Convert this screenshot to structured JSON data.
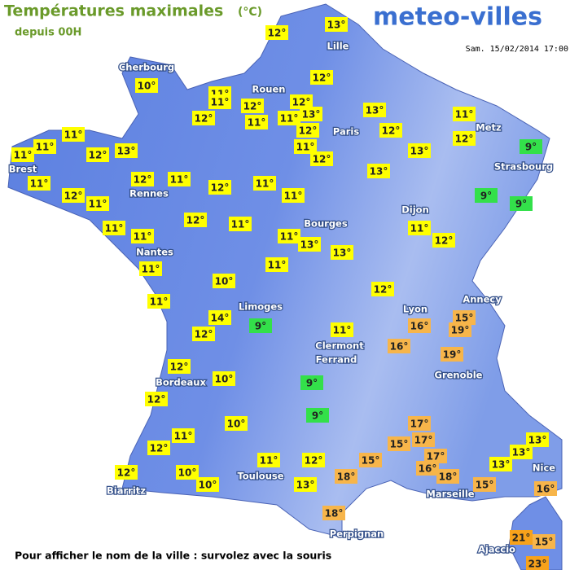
{
  "header": {
    "title": "Températures maximales",
    "unit": "(°C)",
    "subtitle": "depuis 00H",
    "brand": "meteo-villes",
    "date": "Sam. 15/02/2014 17:00"
  },
  "cities": [
    "Lille",
    "Cherbourg",
    "Rouen",
    "Paris",
    "Metz",
    "Strasbourg",
    "Brest",
    "Rennes",
    "Dijon",
    "Bourges",
    "Nantes",
    "Annecy",
    "Limoges",
    "Lyon",
    "Clermont",
    "Ferrand",
    "Grenoble",
    "Bordeaux",
    "Nice",
    "Toulouse",
    "Marseille",
    "Biarritz",
    "Perpignan",
    "Ajaccio"
  ],
  "temperatures": [
    {
      "value": 13,
      "label": "13°"
    },
    {
      "value": 12,
      "label": "12°"
    },
    {
      "value": 10,
      "label": "10°"
    },
    {
      "value": 11,
      "label": "11°"
    },
    {
      "value": 11,
      "label": "11°"
    },
    {
      "value": 12,
      "label": "12°"
    },
    {
      "value": 12,
      "label": "12°"
    },
    {
      "value": 12,
      "label": "12°"
    },
    {
      "value": 13,
      "label": "13°"
    },
    {
      "value": 11,
      "label": "11°"
    },
    {
      "value": 12,
      "label": "12°"
    },
    {
      "value": 11,
      "label": "11°"
    },
    {
      "value": 12,
      "label": "12°"
    },
    {
      "value": 13,
      "label": "13°"
    },
    {
      "value": 12,
      "label": "12°"
    },
    {
      "value": 11,
      "label": "11°"
    },
    {
      "value": 12,
      "label": "12°"
    },
    {
      "value": 9,
      "label": "9°"
    },
    {
      "value": 11,
      "label": "11°"
    },
    {
      "value": 11,
      "label": "11°"
    },
    {
      "value": 11,
      "label": "11°"
    },
    {
      "value": 12,
      "label": "12°"
    },
    {
      "value": 13,
      "label": "13°"
    },
    {
      "value": 11,
      "label": "11°"
    },
    {
      "value": 12,
      "label": "12°"
    },
    {
      "value": 13,
      "label": "13°"
    },
    {
      "value": 11,
      "label": "11°"
    },
    {
      "value": 12,
      "label": "12°"
    },
    {
      "value": 11,
      "label": "11°"
    },
    {
      "value": 12,
      "label": "12°"
    },
    {
      "value": 11,
      "label": "11°"
    },
    {
      "value": 13,
      "label": "13°"
    },
    {
      "value": 12,
      "label": "12°"
    },
    {
      "value": 11,
      "label": "11°"
    },
    {
      "value": 11,
      "label": "11°"
    },
    {
      "value": 9,
      "label": "9°"
    },
    {
      "value": 9,
      "label": "9°"
    },
    {
      "value": 12,
      "label": "12°"
    },
    {
      "value": 11,
      "label": "11°"
    },
    {
      "value": 11,
      "label": "11°"
    },
    {
      "value": 11,
      "label": "11°"
    },
    {
      "value": 11,
      "label": "11°"
    },
    {
      "value": 13,
      "label": "13°"
    },
    {
      "value": 13,
      "label": "13°"
    },
    {
      "value": 11,
      "label": "11°"
    },
    {
      "value": 12,
      "label": "12°"
    },
    {
      "value": 11,
      "label": "11°"
    },
    {
      "value": 11,
      "label": "11°"
    },
    {
      "value": 10,
      "label": "10°"
    },
    {
      "value": 12,
      "label": "12°"
    },
    {
      "value": 11,
      "label": "11°"
    },
    {
      "value": 14,
      "label": "14°"
    },
    {
      "value": 9,
      "label": "9°"
    },
    {
      "value": 12,
      "label": "12°"
    },
    {
      "value": 11,
      "label": "11°"
    },
    {
      "value": 15,
      "label": "15°"
    },
    {
      "value": 16,
      "label": "16°"
    },
    {
      "value": 19,
      "label": "19°"
    },
    {
      "value": 16,
      "label": "16°"
    },
    {
      "value": 19,
      "label": "19°"
    },
    {
      "value": 12,
      "label": "12°"
    },
    {
      "value": 10,
      "label": "10°"
    },
    {
      "value": 9,
      "label": "9°"
    },
    {
      "value": 12,
      "label": "12°"
    },
    {
      "value": 9,
      "label": "9°"
    },
    {
      "value": 10,
      "label": "10°"
    },
    {
      "value": 17,
      "label": "17°"
    },
    {
      "value": 11,
      "label": "11°"
    },
    {
      "value": 17,
      "label": "17°"
    },
    {
      "value": 15,
      "label": "15°"
    },
    {
      "value": 12,
      "label": "12°"
    },
    {
      "value": 13,
      "label": "13°"
    },
    {
      "value": 13,
      "label": "13°"
    },
    {
      "value": 11,
      "label": "11°"
    },
    {
      "value": 12,
      "label": "12°"
    },
    {
      "value": 17,
      "label": "17°"
    },
    {
      "value": 15,
      "label": "15°"
    },
    {
      "value": 16,
      "label": "16°"
    },
    {
      "value": 13,
      "label": "13°"
    },
    {
      "value": 18,
      "label": "18°"
    },
    {
      "value": 18,
      "label": "18°"
    },
    {
      "value": 12,
      "label": "12°"
    },
    {
      "value": 10,
      "label": "10°"
    },
    {
      "value": 10,
      "label": "10°"
    },
    {
      "value": 13,
      "label": "13°"
    },
    {
      "value": 15,
      "label": "15°"
    },
    {
      "value": 16,
      "label": "16°"
    },
    {
      "value": 18,
      "label": "18°"
    },
    {
      "value": 21,
      "label": "21°"
    },
    {
      "value": 15,
      "label": "15°"
    },
    {
      "value": 23,
      "label": "23°"
    }
  ],
  "footer": "Pour afficher le nom de la ville : survolez avec la souris"
}
